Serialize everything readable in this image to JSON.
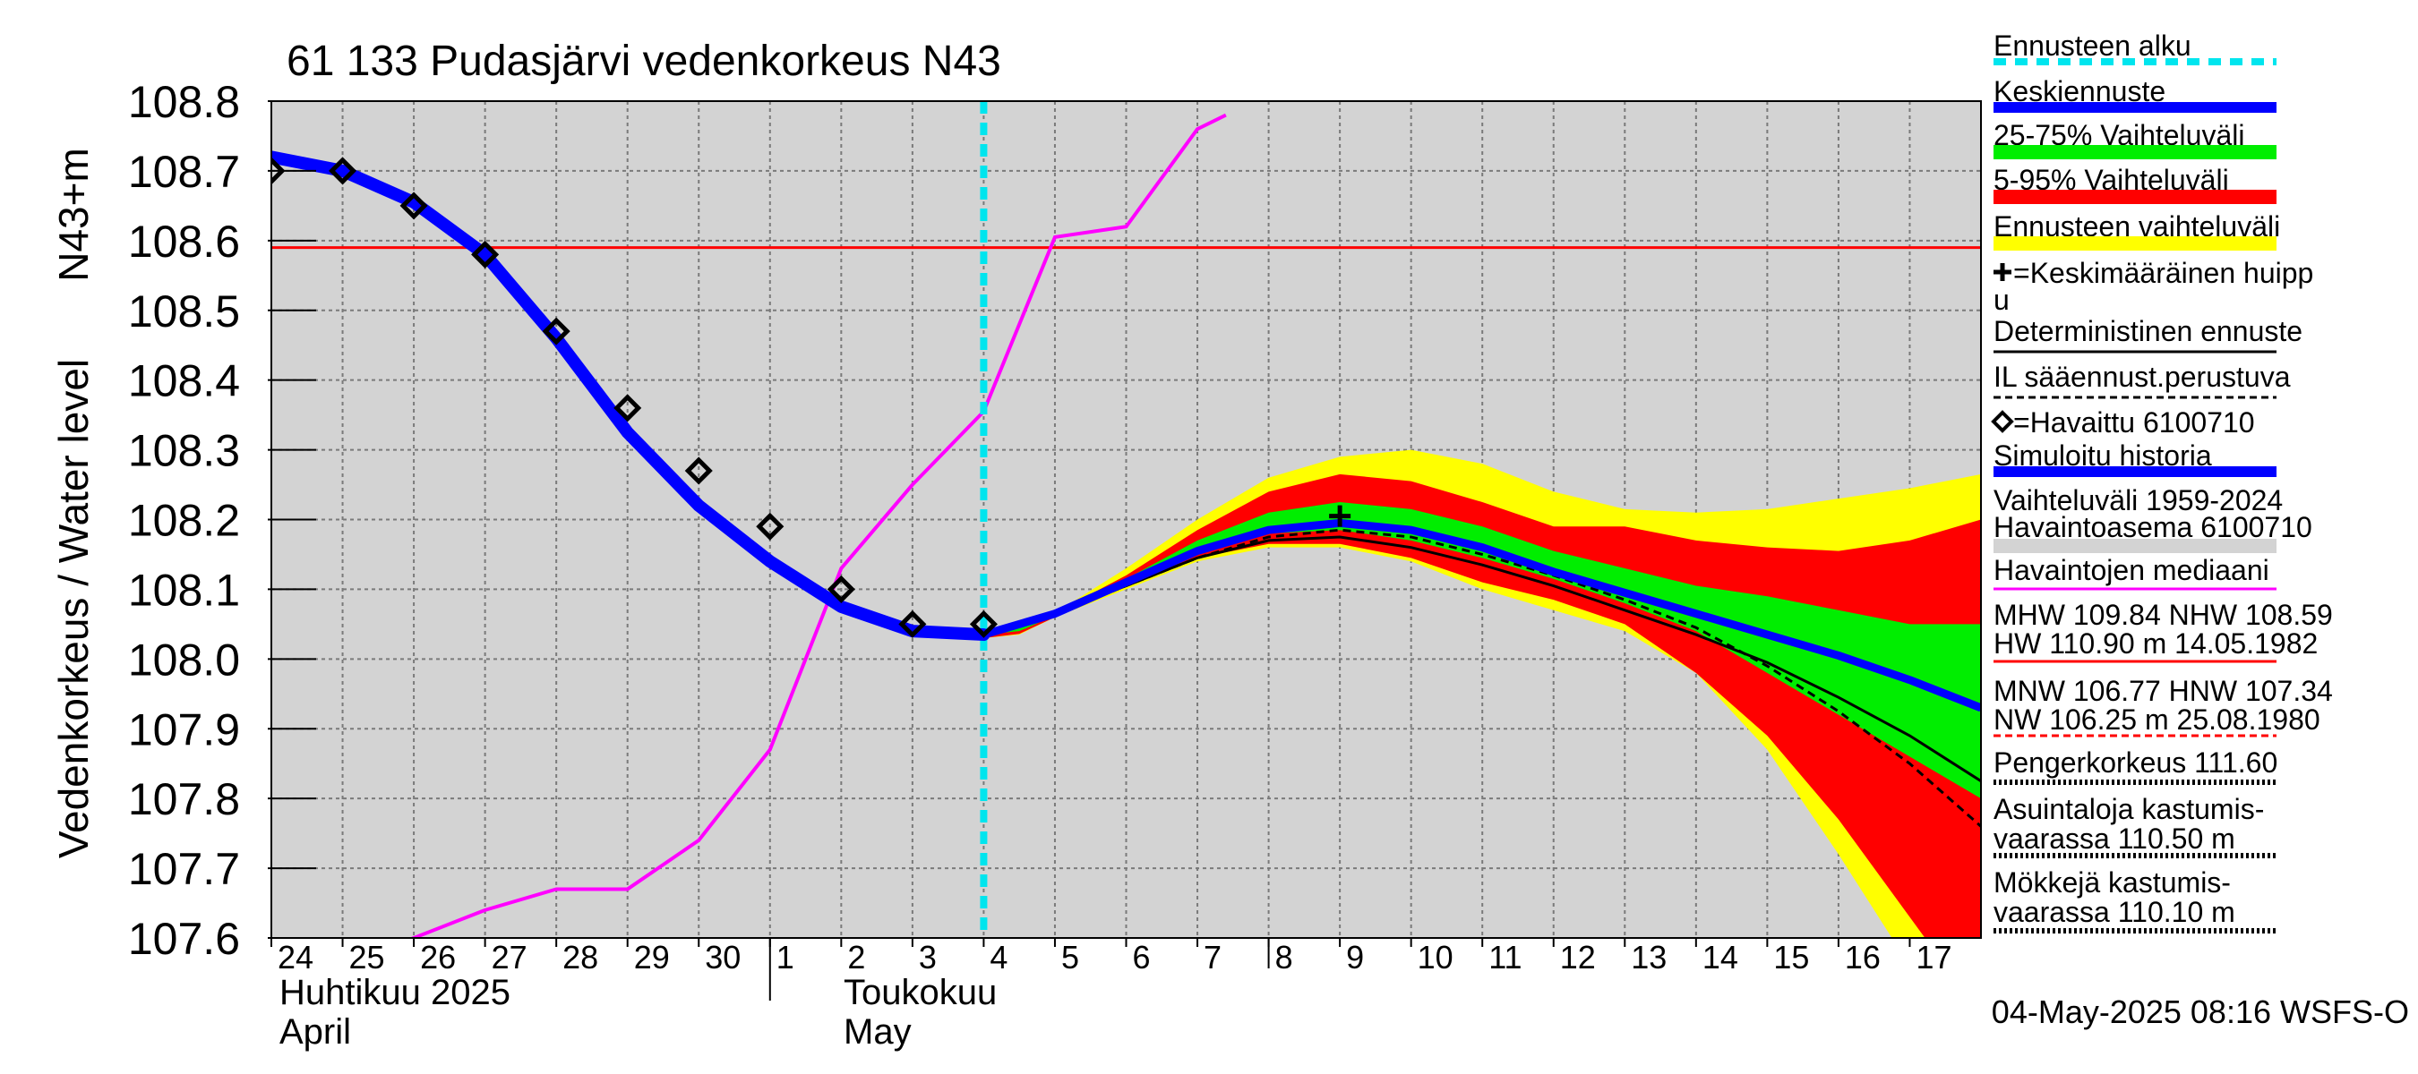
{
  "chart_data": {
    "type": "line",
    "title": "61 133 Pudasjärvi vedenkorkeus N43",
    "ylabel": "Vedenkorkeus / Water level",
    "ylabel_unit": "N43+m",
    "ylim": [
      107.6,
      108.8
    ],
    "y_ticks": [
      "107.6",
      "107.7",
      "107.8",
      "107.9",
      "108.0",
      "108.1",
      "108.2",
      "108.3",
      "108.4",
      "108.5",
      "108.6",
      "108.7",
      "108.8"
    ],
    "x_range_days": [
      0,
      24
    ],
    "x_ticks": [
      "24",
      "25",
      "26",
      "27",
      "28",
      "29",
      "30",
      "1",
      "2",
      "3",
      "4",
      "5",
      "6",
      "7",
      "8",
      "9",
      "10",
      "11",
      "12",
      "13",
      "14",
      "15",
      "16",
      "17"
    ],
    "month_labels": [
      {
        "fi": "Huhtikuu  2025",
        "en": "April"
      },
      {
        "fi": "Toukokuu",
        "en": "May"
      }
    ],
    "forecast_start_day": 10.0,
    "reference_line_nhw": 108.59,
    "series": {
      "band_ennusteen_vaihteluvali": {
        "name": "Ennusteen vaihteluväli",
        "color": "#ffff00",
        "x": [
          10.0,
          10.5,
          11,
          12,
          13,
          14,
          15,
          16,
          17,
          18,
          19,
          20,
          21,
          22,
          23,
          24
        ],
        "upper": [
          108.04,
          108.05,
          108.066,
          108.13,
          108.2,
          108.26,
          108.29,
          108.3,
          108.28,
          108.24,
          108.215,
          108.21,
          108.215,
          108.23,
          108.245,
          108.265
        ],
        "lower": [
          108.03,
          108.035,
          108.06,
          108.1,
          108.14,
          108.16,
          108.16,
          108.14,
          108.1,
          108.07,
          108.04,
          107.98,
          107.87,
          107.72,
          107.56,
          107.4
        ]
      },
      "band_5_95": {
        "name": "5-95% Vaihteluväli",
        "color": "#ff0000",
        "x": [
          10.0,
          10.5,
          11,
          12,
          13,
          14,
          15,
          16,
          17,
          18,
          19,
          20,
          21,
          22,
          23,
          24
        ],
        "upper": [
          108.04,
          108.048,
          108.066,
          108.12,
          108.185,
          108.24,
          108.265,
          108.255,
          108.225,
          108.19,
          108.19,
          108.17,
          108.16,
          108.155,
          108.17,
          108.2
        ],
        "lower": [
          108.03,
          108.036,
          108.06,
          108.105,
          108.145,
          108.165,
          108.165,
          108.145,
          108.11,
          108.085,
          108.05,
          107.98,
          107.89,
          107.77,
          107.63,
          107.49
        ]
      },
      "band_25_75": {
        "name": "25-75% Vaihteluväli",
        "color": "#00ee00",
        "x": [
          10.0,
          10.5,
          11,
          12,
          13,
          14,
          15,
          16,
          17,
          18,
          19,
          20,
          21,
          22,
          23,
          24
        ],
        "upper": [
          108.04,
          108.046,
          108.066,
          108.115,
          108.17,
          108.21,
          108.225,
          108.215,
          108.19,
          108.155,
          108.13,
          108.105,
          108.09,
          108.07,
          108.05,
          108.05
        ],
        "lower": [
          108.035,
          108.04,
          108.062,
          108.11,
          108.155,
          108.18,
          108.185,
          108.17,
          108.145,
          108.115,
          108.08,
          108.04,
          107.98,
          107.92,
          107.86,
          107.8
        ]
      },
      "median_history": {
        "name": "Havaintojen mediaani",
        "color": "#ff00ff",
        "x": [
          1.6,
          2.0,
          3.0,
          4.0,
          5.0,
          6.0,
          7.0,
          8.0,
          9.0,
          10.0,
          11.0,
          12.0,
          13.0,
          13.4
        ],
        "y": [
          107.585,
          107.6,
          107.64,
          107.67,
          107.67,
          107.74,
          107.87,
          108.13,
          108.25,
          108.355,
          108.605,
          108.62,
          108.76,
          108.78
        ]
      },
      "simulated_history": {
        "name": "Simuloitu historia",
        "color": "#0000ff",
        "x": [
          0,
          1,
          2,
          3,
          4,
          5,
          6,
          7,
          8,
          9,
          10
        ],
        "y": [
          108.72,
          108.7,
          108.655,
          108.58,
          108.46,
          108.325,
          108.22,
          108.14,
          108.075,
          108.04,
          108.035
        ]
      },
      "keskiennuste": {
        "name": "Keskiennuste",
        "color": "#0000ff",
        "x": [
          10,
          11,
          12,
          13,
          14,
          15,
          16,
          17,
          18,
          19,
          20,
          21,
          22,
          23,
          24
        ],
        "y": [
          108.035,
          108.065,
          108.11,
          108.155,
          108.185,
          108.195,
          108.185,
          108.16,
          108.125,
          108.095,
          108.065,
          108.035,
          108.005,
          107.97,
          107.93
        ]
      },
      "deterministic": {
        "name": "Deterministinen ennuste",
        "color": "#000000",
        "x": [
          10,
          11,
          12,
          13,
          14,
          15,
          16,
          17,
          18,
          19,
          20,
          21,
          22,
          23,
          24
        ],
        "y": [
          108.035,
          108.065,
          108.105,
          108.145,
          108.17,
          108.175,
          108.16,
          108.135,
          108.105,
          108.07,
          108.035,
          107.995,
          107.945,
          107.89,
          107.825
        ]
      },
      "il_forecast": {
        "name": "IL sääennust.perustuva",
        "color": "#000000",
        "x": [
          10,
          11,
          12,
          13,
          14,
          15,
          16,
          17,
          18,
          19,
          20,
          21,
          22,
          23,
          24
        ],
        "y": [
          108.035,
          108.065,
          108.105,
          108.145,
          108.175,
          108.185,
          108.175,
          108.15,
          108.12,
          108.085,
          108.045,
          107.99,
          107.925,
          107.85,
          107.76
        ]
      },
      "observed": {
        "name": "Havaittu 6100710",
        "x": [
          0,
          1,
          2,
          3,
          4,
          5,
          6,
          7,
          8,
          9,
          10
        ],
        "y": [
          108.7,
          108.7,
          108.65,
          108.58,
          108.47,
          108.36,
          108.27,
          108.19,
          108.1,
          108.05,
          108.05
        ]
      },
      "mean_peak": {
        "name": "Keskimääräinen huippu",
        "x": 15.0,
        "y": 108.205
      }
    },
    "legend": [
      {
        "key": "forecast_start",
        "label": "Ennusteen alku",
        "style": "dash",
        "color": "#00e5ee"
      },
      {
        "key": "keskiennuste",
        "label": "Keskiennuste",
        "style": "thick",
        "color": "#0000ff"
      },
      {
        "key": "band_25_75",
        "label": "25-75% Vaihteluväli",
        "style": "band",
        "color": "#00ee00"
      },
      {
        "key": "band_5_95",
        "label": "5-95% Vaihteluväli",
        "style": "band",
        "color": "#ff0000"
      },
      {
        "key": "band_yellow",
        "label": "Ennusteen vaihteluväli",
        "style": "band",
        "color": "#ffff00"
      },
      {
        "key": "peak",
        "label": "=Keskimääräinen huipp",
        "label2": "u",
        "style": "plus",
        "color": "#000000"
      },
      {
        "key": "deterministic",
        "label": "Deterministinen ennuste",
        "style": "thin",
        "color": "#000000"
      },
      {
        "key": "il",
        "label": "IL sääennust.perustuva",
        "style": "dashthin",
        "color": "#000000"
      },
      {
        "key": "observed",
        "label": "=Havaittu 6100710",
        "style": "diamond",
        "color": "#000000"
      },
      {
        "key": "simulated",
        "label": "Simuloitu historia",
        "style": "thick",
        "color": "#0000ff"
      },
      {
        "key": "range",
        "label": "Vaihteluväli 1959-2024",
        "label2": " Havaintoasema 6100710",
        "style": "band",
        "color": "#d3d3d3"
      },
      {
        "key": "median",
        "label": "Havaintojen mediaani",
        "style": "thin",
        "color": "#ff00ff"
      },
      {
        "key": "mhw",
        "label": "MHW 109.84 NHW 108.59",
        "label2": "HW 110.90 m 14.05.1982",
        "style": "thin",
        "color": "#ff0000"
      },
      {
        "key": "mnw",
        "label": "MNW 106.77 HNW 107.34",
        "label2": "NW 106.25 m 25.08.1980",
        "style": "dashthin",
        "color": "#ff0000"
      },
      {
        "key": "dike",
        "label": "Pengerkorkeus 111.60",
        "style": "dotted",
        "color": "#000000"
      },
      {
        "key": "houses",
        "label": "Asuintaloja kastumis-",
        "label2": "vaarassa 110.50 m",
        "style": "dotted",
        "color": "#000000"
      },
      {
        "key": "cottages",
        "label": "Mökkejä kastumis-",
        "label2": "vaarassa 110.10 m",
        "style": "dotted",
        "color": "#000000"
      }
    ],
    "footer": "04-May-2025 08:16 WSFS-O"
  }
}
